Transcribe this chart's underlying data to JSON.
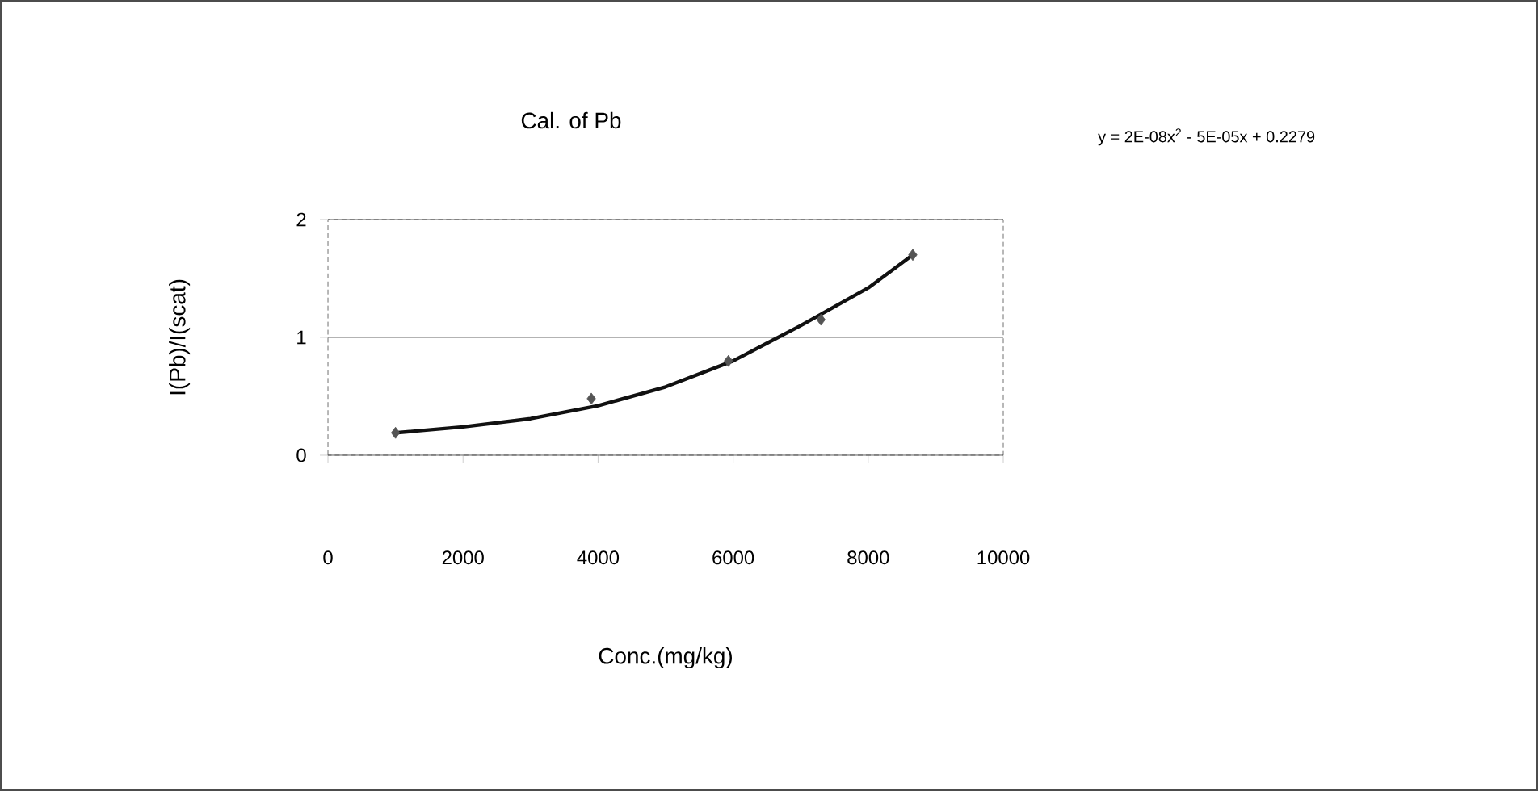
{
  "chart_data": {
    "type": "scatter",
    "title": "Cal. of Pb",
    "xlabel": "Conc.(mg/kg)",
    "ylabel": "I(Pb)/I(scat)",
    "annotations": [
      "y = 2E-08x$^{2}$ - 5E-05x + 0.2279"
    ],
    "series": [
      {
        "color": "#555555",
        "marker": "diamond",
        "x": [
          1000,
          3900,
          5930,
          7300,
          8660
        ],
        "values": [
          0.19,
          0.48,
          0.8,
          1.15,
          1.7
        ]
      },
      {
        "type": "line",
        "color": "#111111",
        "marker": "none",
        "x": [
          1000,
          2000,
          3000,
          4000,
          5000,
          6000,
          6500,
          7000,
          8000,
          8660
        ],
        "values": [
          0.19,
          0.24,
          0.31,
          0.42,
          0.58,
          0.8,
          0.95,
          1.1,
          1.42,
          1.7
        ]
      }
    ],
    "xlim": [
      0,
      10000
    ],
    "xticks": [
      0,
      2000,
      4000,
      6000,
      8000,
      10000
    ],
    "ylim": [
      0,
      2
    ],
    "yticks": [
      0,
      1,
      2
    ],
    "grid": "y"
  }
}
